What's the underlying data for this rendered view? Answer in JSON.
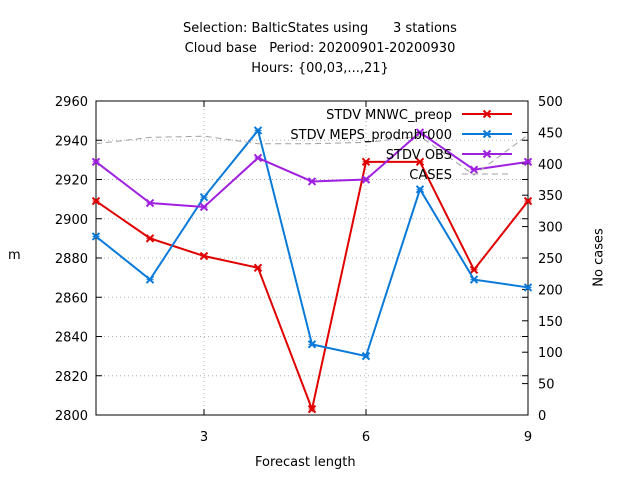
{
  "chart_data": {
    "type": "line",
    "title_lines": [
      "Selection: BalticStates using      3 stations",
      "Cloud base   Period: 20200901-20200930",
      "Hours: {00,03,...,21}"
    ],
    "xlabel": "Forecast length",
    "ylabel": "m",
    "y2label": "No cases",
    "xlim": [
      1,
      9
    ],
    "ylim": [
      2800,
      2960
    ],
    "y2lim": [
      0,
      500
    ],
    "x_ticks": [
      3,
      6,
      9
    ],
    "y_ticks": [
      2800,
      2820,
      2840,
      2860,
      2880,
      2900,
      2920,
      2940,
      2960
    ],
    "y2_ticks": [
      0,
      50,
      100,
      150,
      200,
      250,
      300,
      350,
      400,
      450,
      500
    ],
    "grid": true,
    "legend_position": "top-right",
    "x": [
      1,
      2,
      3,
      4,
      5,
      6,
      7,
      8,
      9
    ],
    "series": [
      {
        "name": "STDV MNWC_preop",
        "color": "#e00000",
        "axis": "y1",
        "values": [
          2909,
          2890,
          2881,
          2875,
          2803,
          2929,
          2929,
          2874,
          2909
        ]
      },
      {
        "name": "STDV MEPS_prodmbr000",
        "color": "#0a7ad9",
        "axis": "y1",
        "values": [
          2891,
          2869,
          2911,
          2945,
          2836,
          2830,
          2915,
          2869,
          2865
        ]
      },
      {
        "name": "STDV OBS",
        "color": "#a020e0",
        "axis": "y1",
        "values": [
          2929,
          2908,
          2906,
          2931,
          2919,
          2920,
          2944,
          2925,
          2929
        ]
      },
      {
        "name": "CASES",
        "color": "#a0a0a0",
        "axis": "y2",
        "dashed": true,
        "values": [
          432,
          442,
          444,
          432,
          432,
          434,
          444,
          382,
          446
        ]
      }
    ]
  }
}
